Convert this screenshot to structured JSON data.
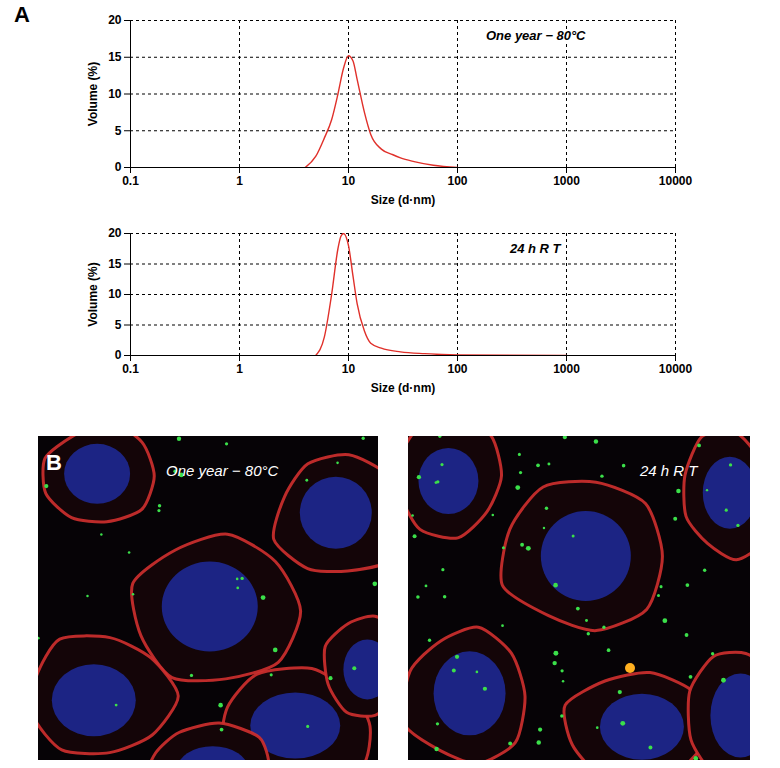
{
  "panel_labels": [
    "A",
    "B"
  ],
  "chart_data": [
    {
      "type": "line",
      "annotation": "One year − 80°C",
      "x_label": "Size (d·nm)",
      "y_label": "Volume (%)",
      "x": [
        4,
        5,
        6,
        7,
        8,
        9,
        10,
        11,
        12,
        14,
        16,
        20,
        25,
        30,
        40,
        60,
        100
      ],
      "values": [
        0,
        1.5,
        4,
        6.5,
        10,
        13.5,
        15.2,
        14.5,
        12,
        7.5,
        4.5,
        2.5,
        1.8,
        1.3,
        0.8,
        0.3,
        0
      ],
      "color": "#e0302a",
      "log": "x",
      "grid": true,
      "xlim": [
        0.1,
        10000
      ],
      "xticks": [
        0.1,
        1,
        10,
        100,
        1000,
        10000
      ],
      "ylim": [
        0,
        20
      ],
      "yticks": [
        0,
        5,
        10,
        15,
        20
      ]
    },
    {
      "type": "line",
      "annotation": "24 h R T",
      "x_label": "Size (d·nm)",
      "y_label": "Volume (%)",
      "x": [
        5,
        6,
        7,
        8,
        8.5,
        9,
        10,
        11,
        12,
        14,
        16,
        20,
        30,
        50,
        100,
        1000
      ],
      "values": [
        0,
        3,
        10,
        17.5,
        19.5,
        20,
        18,
        13,
        8.5,
        4,
        2,
        1.2,
        0.6,
        0.3,
        0.1,
        0
      ],
      "color": "#e0302a",
      "log": "x",
      "grid": true,
      "xlim": [
        0.1,
        10000
      ],
      "xticks": [
        0.1,
        1,
        10,
        100,
        1000,
        10000
      ],
      "ylim": [
        0,
        20
      ],
      "yticks": [
        0,
        5,
        10,
        15,
        20
      ]
    }
  ],
  "images": [
    {
      "label": "One year − 80°C"
    },
    {
      "label": "24 h R T"
    }
  ]
}
